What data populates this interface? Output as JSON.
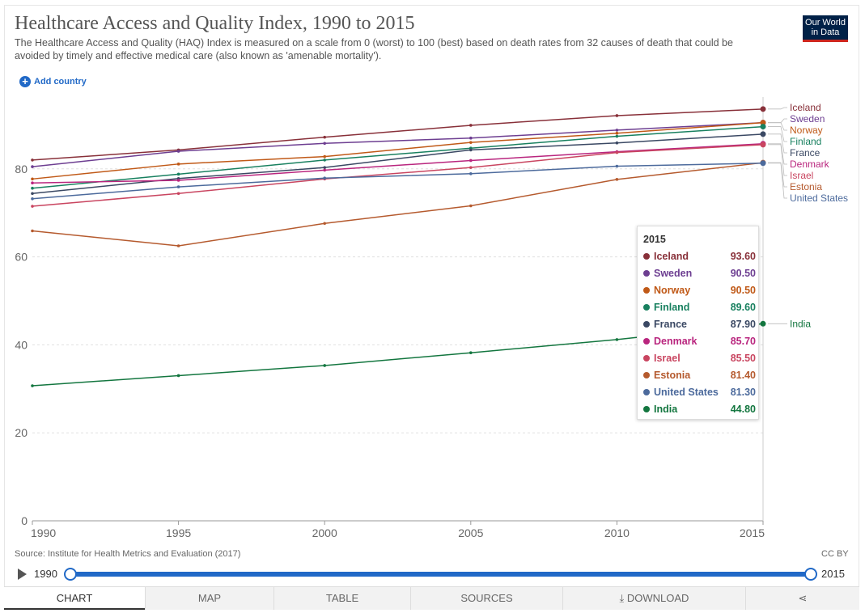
{
  "header": {
    "title": "Healthcare Access and Quality Index, 1990 to 2015",
    "subtitle": "The Healthcare Access and Quality (HAQ) Index is measured on a scale from 0 (worst) to 100 (best) based on death rates from 32 causes of death that could be avoided by timely and effective medical care (also known as 'amenable mortality').",
    "logo_line1": "Our World",
    "logo_line2": "in Data",
    "add_country": "Add country"
  },
  "chart_data": {
    "type": "line",
    "title": "Healthcare Access and Quality Index, 1990 to 2015",
    "xlabel": "",
    "ylabel": "",
    "x": [
      1990,
      1995,
      2000,
      2005,
      2010,
      2015
    ],
    "xlim": [
      1990,
      2015
    ],
    "ylim": [
      0,
      100
    ],
    "yticks": [
      0,
      20,
      40,
      60,
      80
    ],
    "xticks": [
      1990,
      1995,
      2000,
      2005,
      2010,
      2015
    ],
    "grid": "horizontal dashed",
    "series": [
      {
        "name": "Iceland",
        "color": "#883039",
        "values": [
          82.0,
          84.3,
          87.2,
          89.9,
          92.1,
          93.6
        ]
      },
      {
        "name": "Sweden",
        "color": "#6d3e91",
        "values": [
          80.5,
          84.0,
          85.8,
          87.0,
          88.8,
          90.5
        ]
      },
      {
        "name": "Norway",
        "color": "#c05917",
        "values": [
          77.7,
          81.1,
          82.8,
          86.0,
          88.1,
          90.5
        ]
      },
      {
        "name": "Finland",
        "color": "#18805f",
        "values": [
          75.6,
          78.8,
          82.0,
          84.7,
          87.4,
          89.6
        ]
      },
      {
        "name": "France",
        "color": "#3a4863",
        "values": [
          74.4,
          77.8,
          80.3,
          84.3,
          85.9,
          87.9
        ]
      },
      {
        "name": "Denmark",
        "color": "#b9257e",
        "values": [
          76.8,
          77.4,
          79.7,
          81.9,
          83.9,
          85.7
        ]
      },
      {
        "name": "Israel",
        "color": "#c94560",
        "values": [
          71.5,
          74.4,
          77.7,
          80.3,
          83.7,
          85.5
        ]
      },
      {
        "name": "Estonia",
        "color": "#b55a2e",
        "values": [
          65.9,
          62.5,
          67.6,
          71.6,
          77.6,
          81.4
        ]
      },
      {
        "name": "United States",
        "color": "#4c6a9c",
        "values": [
          73.2,
          75.9,
          77.9,
          78.9,
          80.6,
          81.3
        ]
      },
      {
        "name": "India",
        "color": "#13763f",
        "values": [
          30.7,
          33.0,
          35.3,
          38.2,
          41.2,
          44.8
        ]
      }
    ],
    "right_labels": [
      "Iceland",
      "Sweden",
      "Norway",
      "Finland",
      "France",
      "Denmark",
      "Israel",
      "Estonia",
      "United States",
      "India"
    ],
    "tooltip": {
      "year": "2015",
      "rows": [
        {
          "name": "Iceland",
          "value": "93.60",
          "color": "#883039"
        },
        {
          "name": "Sweden",
          "value": "90.50",
          "color": "#6d3e91"
        },
        {
          "name": "Norway",
          "value": "90.50",
          "color": "#c05917"
        },
        {
          "name": "Finland",
          "value": "89.60",
          "color": "#18805f"
        },
        {
          "name": "France",
          "value": "87.90",
          "color": "#3a4863"
        },
        {
          "name": "Denmark",
          "value": "85.70",
          "color": "#b9257e"
        },
        {
          "name": "Israel",
          "value": "85.50",
          "color": "#c94560"
        },
        {
          "name": "Estonia",
          "value": "81.40",
          "color": "#b55a2e"
        },
        {
          "name": "United States",
          "value": "81.30",
          "color": "#4c6a9c"
        },
        {
          "name": "India",
          "value": "44.80",
          "color": "#13763f"
        }
      ]
    }
  },
  "footer": {
    "source": "Source: Institute for Health Metrics and Evaluation (2017)",
    "license": "CC BY",
    "timeline_start": "1990",
    "timeline_end": "2015"
  },
  "tabs": [
    {
      "label": "CHART",
      "active": true
    },
    {
      "label": "MAP",
      "active": false
    },
    {
      "label": "TABLE",
      "active": false
    },
    {
      "label": "SOURCES",
      "active": false
    },
    {
      "label": "DOWNLOAD",
      "active": false
    },
    {
      "label": "",
      "active": false
    }
  ]
}
